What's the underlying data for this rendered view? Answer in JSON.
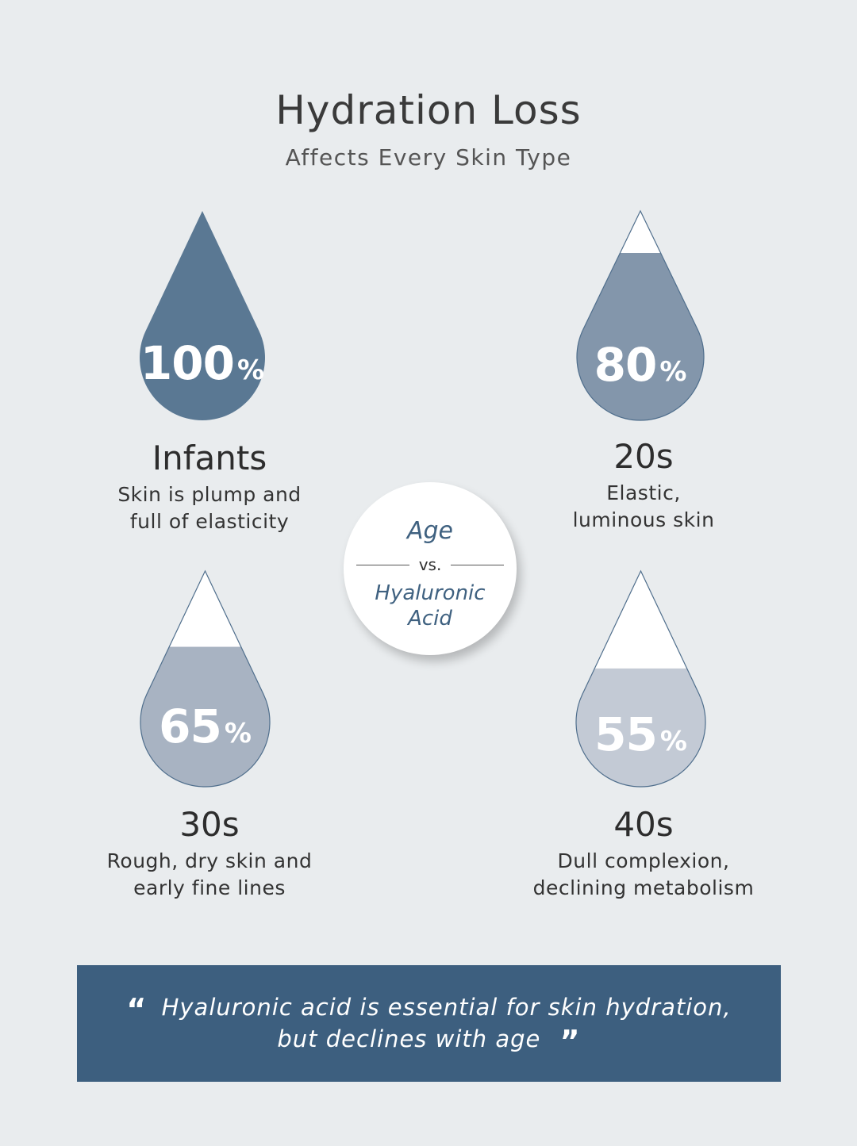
{
  "header": {
    "title": "Hydration Loss",
    "subtitle": "Affects Every Skin Type"
  },
  "groups": [
    {
      "number": "100",
      "percent_sign": "%",
      "level": 1.0,
      "color": "#5a7893",
      "label": "Infants",
      "desc_line1": "Skin is plump and",
      "desc_line2": "full of elasticity"
    },
    {
      "number": "80",
      "percent_sign": "%",
      "level": 0.8,
      "color": "#8396ab",
      "label": "20s",
      "desc_line1": "Elastic,",
      "desc_line2": "luminous skin"
    },
    {
      "number": "65",
      "percent_sign": "%",
      "level": 0.65,
      "color": "#a8b3c2",
      "label": "30s",
      "desc_line1": "Rough, dry skin and",
      "desc_line2": "early fine lines"
    },
    {
      "number": "55",
      "percent_sign": "%",
      "level": 0.55,
      "color": "#c3cad5",
      "label": "40s",
      "desc_line1": "Dull complexion,",
      "desc_line2": "declining metabolism"
    }
  ],
  "center": {
    "age": "Age",
    "vs": "vs.",
    "ha_line1": "Hyaluronic",
    "ha_line2": "Acid"
  },
  "quote": {
    "open_mark": "“",
    "line1": "Hyaluronic acid is essential for skin hydration,",
    "line2": "but declines with age",
    "close_mark": "”",
    "background": "#3d5f7f"
  },
  "colors": {
    "background": "#e9ecee",
    "drop_outline": "#4f6e8c",
    "accent": "#3f6180"
  }
}
